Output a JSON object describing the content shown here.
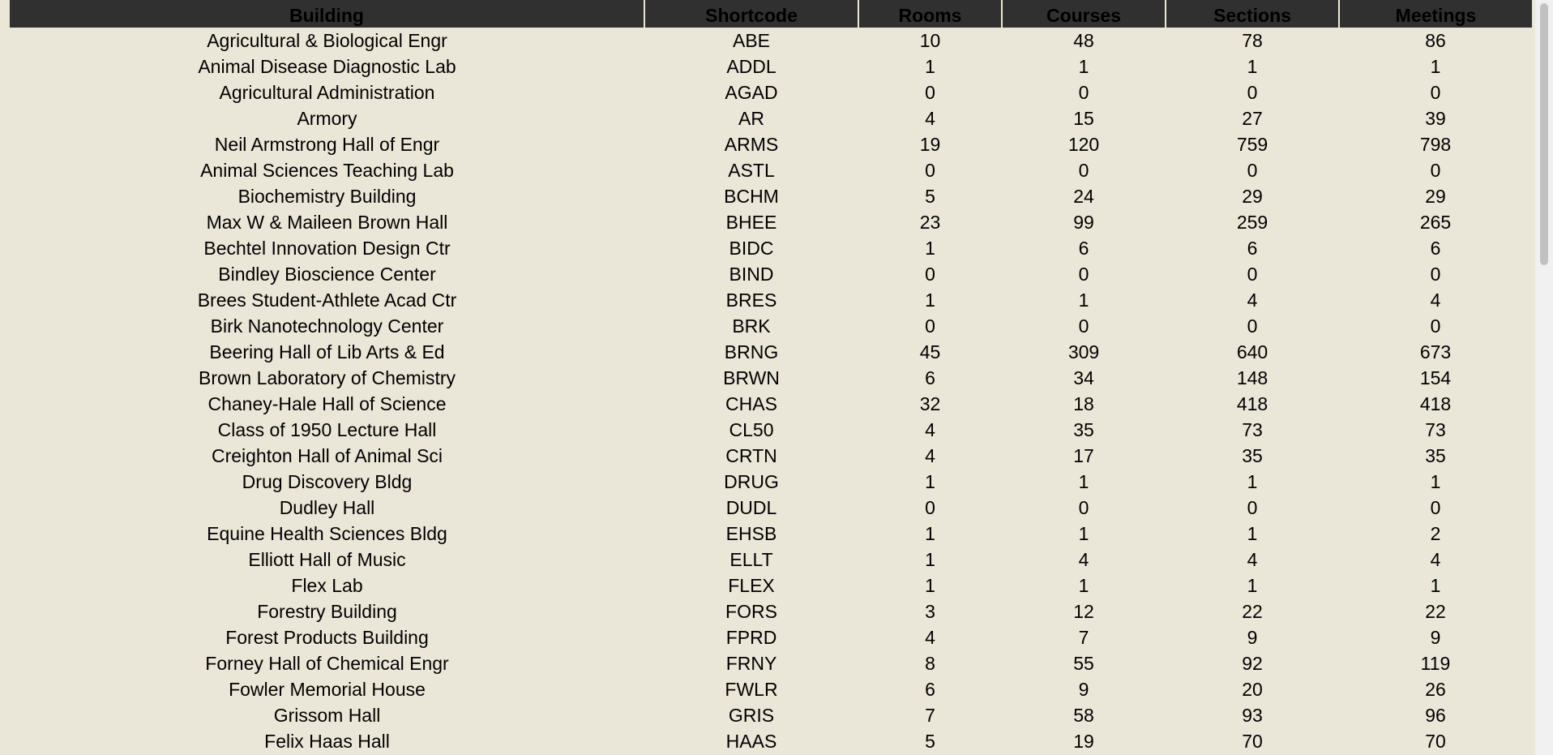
{
  "table": {
    "headers": [
      "Building",
      "Shortcode",
      "Rooms",
      "Courses",
      "Sections",
      "Meetings"
    ],
    "rows": [
      [
        "Agricultural & Biological Engr",
        "ABE",
        "10",
        "48",
        "78",
        "86"
      ],
      [
        "Animal Disease Diagnostic Lab",
        "ADDL",
        "1",
        "1",
        "1",
        "1"
      ],
      [
        "Agricultural Administration",
        "AGAD",
        "0",
        "0",
        "0",
        "0"
      ],
      [
        "Armory",
        "AR",
        "4",
        "15",
        "27",
        "39"
      ],
      [
        "Neil Armstrong Hall of Engr",
        "ARMS",
        "19",
        "120",
        "759",
        "798"
      ],
      [
        "Animal Sciences Teaching Lab",
        "ASTL",
        "0",
        "0",
        "0",
        "0"
      ],
      [
        "Biochemistry Building",
        "BCHM",
        "5",
        "24",
        "29",
        "29"
      ],
      [
        "Max W & Maileen Brown Hall",
        "BHEE",
        "23",
        "99",
        "259",
        "265"
      ],
      [
        "Bechtel Innovation Design Ctr",
        "BIDC",
        "1",
        "6",
        "6",
        "6"
      ],
      [
        "Bindley Bioscience Center",
        "BIND",
        "0",
        "0",
        "0",
        "0"
      ],
      [
        "Brees Student-Athlete Acad Ctr",
        "BRES",
        "1",
        "1",
        "4",
        "4"
      ],
      [
        "Birk Nanotechnology Center",
        "BRK",
        "0",
        "0",
        "0",
        "0"
      ],
      [
        "Beering Hall of Lib Arts & Ed",
        "BRNG",
        "45",
        "309",
        "640",
        "673"
      ],
      [
        "Brown Laboratory of Chemistry",
        "BRWN",
        "6",
        "34",
        "148",
        "154"
      ],
      [
        "Chaney-Hale Hall of Science",
        "CHAS",
        "32",
        "18",
        "418",
        "418"
      ],
      [
        "Class of 1950 Lecture Hall",
        "CL50",
        "4",
        "35",
        "73",
        "73"
      ],
      [
        "Creighton Hall of Animal Sci",
        "CRTN",
        "4",
        "17",
        "35",
        "35"
      ],
      [
        "Drug Discovery Bldg",
        "DRUG",
        "1",
        "1",
        "1",
        "1"
      ],
      [
        "Dudley Hall",
        "DUDL",
        "0",
        "0",
        "0",
        "0"
      ],
      [
        "Equine Health Sciences Bldg",
        "EHSB",
        "1",
        "1",
        "1",
        "2"
      ],
      [
        "Elliott Hall of Music",
        "ELLT",
        "1",
        "4",
        "4",
        "4"
      ],
      [
        "Flex Lab",
        "FLEX",
        "1",
        "1",
        "1",
        "1"
      ],
      [
        "Forestry Building",
        "FORS",
        "3",
        "12",
        "22",
        "22"
      ],
      [
        "Forest Products Building",
        "FPRD",
        "4",
        "7",
        "9",
        "9"
      ],
      [
        "Forney Hall of Chemical Engr",
        "FRNY",
        "8",
        "55",
        "92",
        "119"
      ],
      [
        "Fowler Memorial House",
        "FWLR",
        "6",
        "9",
        "20",
        "26"
      ],
      [
        "Grissom Hall",
        "GRIS",
        "7",
        "58",
        "93",
        "96"
      ],
      [
        "Felix Haas Hall",
        "HAAS",
        "5",
        "19",
        "70",
        "70"
      ]
    ]
  },
  "colors": {
    "background": "#ebe7d8",
    "header_bg": "#303030",
    "text": "#000000",
    "scrollbar_track": "#f1f1f1",
    "scrollbar_thumb": "#c1c1c1"
  }
}
